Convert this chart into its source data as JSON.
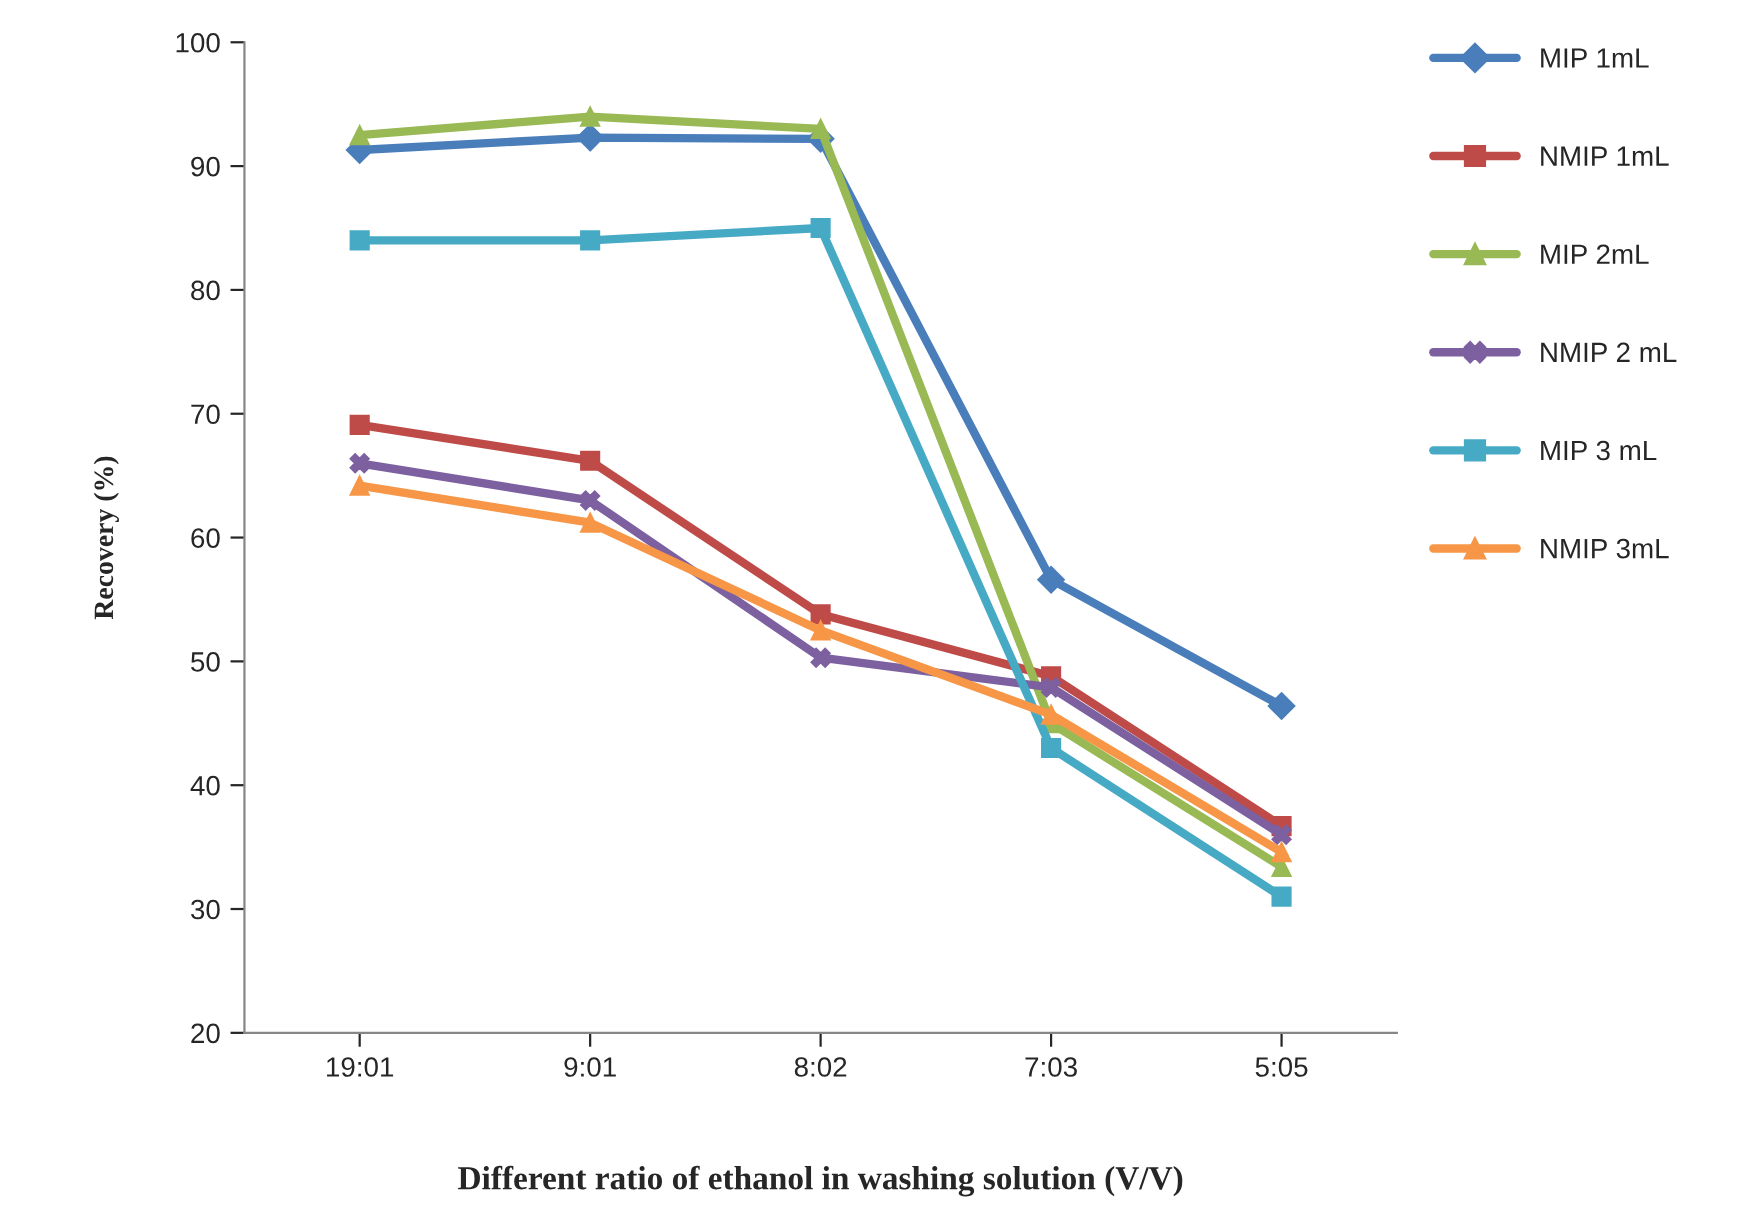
{
  "chart_data": {
    "type": "line",
    "xlabel": "Different ratio of ethanol in washing solution (V/V)",
    "ylabel": "Recovery (%)",
    "categories": [
      "19:01",
      "9:01",
      "8:02",
      "7:03",
      "5:05"
    ],
    "series": [
      {
        "name": "MIP 1mL",
        "color": "#4a7ebb",
        "marker": "diamond",
        "values": [
          91.3,
          92.3,
          92.2,
          56.6,
          46.4
        ]
      },
      {
        "name": "NMIP 1mL",
        "color": "#be4b48",
        "marker": "square",
        "values": [
          69.1,
          66.2,
          53.8,
          48.8,
          36.7
        ]
      },
      {
        "name": "MIP 2mL",
        "color": "#98b954",
        "marker": "triangle",
        "values": [
          92.5,
          94,
          93,
          45,
          33.4
        ]
      },
      {
        "name": "NMIP 2 mL",
        "color": "#7d60a0",
        "marker": "cross",
        "values": [
          66,
          63,
          50.3,
          47.9,
          36
        ]
      },
      {
        "name": "MIP 3 mL",
        "color": "#46aac5",
        "marker": "square",
        "values": [
          84,
          84,
          85,
          43,
          31
        ]
      },
      {
        "name": "NMIP 3mL",
        "color": "#f79646",
        "marker": "triangle",
        "values": [
          64.2,
          61.2,
          52.5,
          45.7,
          34.6
        ]
      }
    ],
    "ylim": [
      20,
      100
    ],
    "yticks": [
      20,
      30,
      40,
      50,
      60,
      70,
      80,
      90,
      100
    ],
    "grid": false,
    "legend": "right",
    "line_style": "solid"
  }
}
